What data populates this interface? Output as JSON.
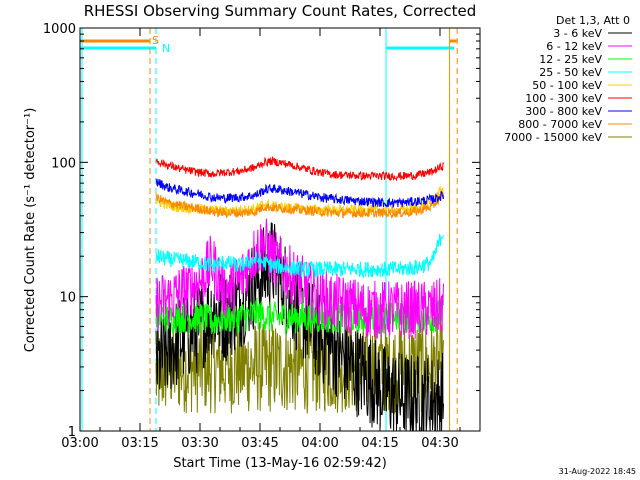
{
  "chart_data": {
    "type": "line",
    "title": "RHESSI Observing Summary Count Rates, Corrected",
    "xlabel": "Start Time (13-May-16 02:59:42)",
    "ylabel": "Corrected Count Rate (s⁻¹ detector⁻¹)",
    "y_scale": "log",
    "ylim": [
      1,
      1000
    ],
    "xlim_minutes": [
      0,
      100
    ],
    "x_ticks": [
      {
        "minute": 0,
        "label": "03:00"
      },
      {
        "minute": 15,
        "label": "03:15"
      },
      {
        "minute": 30,
        "label": "03:30"
      },
      {
        "minute": 45,
        "label": "03:45"
      },
      {
        "minute": 60,
        "label": "04:00"
      },
      {
        "minute": 75,
        "label": "04:15"
      },
      {
        "minute": 90,
        "label": "04:30"
      }
    ],
    "y_ticks": [
      {
        "value": 1,
        "label": "1"
      },
      {
        "value": 10,
        "label": "10"
      },
      {
        "value": 100,
        "label": "100"
      },
      {
        "value": 1000,
        "label": "1000"
      }
    ],
    "legend_header": "Det 1,3, Att 0",
    "series": [
      {
        "name": "3 - 6 keV",
        "color": "#000000",
        "points": [
          [
            19,
            3
          ],
          [
            22,
            4
          ],
          [
            26,
            5
          ],
          [
            30,
            6
          ],
          [
            33,
            8
          ],
          [
            36,
            7
          ],
          [
            40,
            9
          ],
          [
            44,
            13
          ],
          [
            48,
            18
          ],
          [
            52,
            11
          ],
          [
            56,
            7
          ],
          [
            60,
            5
          ],
          [
            64,
            4
          ],
          [
            68,
            3
          ],
          [
            72,
            2.5
          ],
          [
            76,
            2
          ],
          [
            80,
            1.8
          ],
          [
            84,
            1.7
          ],
          [
            88,
            1.7
          ],
          [
            91,
            1.8
          ]
        ]
      },
      {
        "name": "6 - 12 keV",
        "color": "#ff00ff",
        "points": [
          [
            19,
            9
          ],
          [
            22,
            9.5
          ],
          [
            26,
            11
          ],
          [
            30,
            13
          ],
          [
            33,
            18
          ],
          [
            36,
            11
          ],
          [
            40,
            13
          ],
          [
            44,
            22
          ],
          [
            46,
            25
          ],
          [
            48,
            20
          ],
          [
            52,
            15
          ],
          [
            56,
            12
          ],
          [
            60,
            10
          ],
          [
            64,
            9
          ],
          [
            68,
            8.5
          ],
          [
            72,
            8
          ],
          [
            76,
            8
          ],
          [
            80,
            8
          ],
          [
            84,
            8
          ],
          [
            88,
            8
          ],
          [
            91,
            8.5
          ]
        ]
      },
      {
        "name": "12 - 25 keV",
        "color": "#00ff00",
        "points": [
          [
            19,
            7.5
          ],
          [
            22,
            7
          ],
          [
            26,
            7
          ],
          [
            30,
            7
          ],
          [
            33,
            6.5
          ],
          [
            36,
            7
          ],
          [
            40,
            7
          ],
          [
            44,
            7.5
          ],
          [
            48,
            7
          ],
          [
            52,
            7
          ],
          [
            56,
            7
          ],
          [
            60,
            7
          ],
          [
            64,
            7
          ],
          [
            68,
            7
          ],
          [
            72,
            7
          ],
          [
            76,
            7
          ],
          [
            80,
            7
          ],
          [
            84,
            7
          ],
          [
            88,
            7
          ],
          [
            91,
            7.5
          ]
        ]
      },
      {
        "name": "25 - 50 keV",
        "color": "#00ffff",
        "points": [
          [
            19,
            20
          ],
          [
            22,
            19
          ],
          [
            26,
            18.5
          ],
          [
            30,
            18
          ],
          [
            33,
            17
          ],
          [
            36,
            18
          ],
          [
            40,
            17
          ],
          [
            44,
            19
          ],
          [
            48,
            17
          ],
          [
            52,
            16.5
          ],
          [
            56,
            16
          ],
          [
            60,
            16
          ],
          [
            64,
            16
          ],
          [
            68,
            16
          ],
          [
            72,
            16
          ],
          [
            76,
            16
          ],
          [
            80,
            16
          ],
          [
            84,
            16.5
          ],
          [
            88,
            18
          ],
          [
            91,
            32
          ]
        ]
      },
      {
        "name": "50 - 100 keV",
        "color": "#ffcc00",
        "points": [
          [
            19,
            52
          ],
          [
            22,
            48
          ],
          [
            26,
            46
          ],
          [
            30,
            45
          ],
          [
            33,
            44
          ],
          [
            36,
            43
          ],
          [
            40,
            44
          ],
          [
            44,
            45
          ],
          [
            46,
            49
          ],
          [
            48,
            47
          ],
          [
            52,
            46
          ],
          [
            56,
            45
          ],
          [
            60,
            44
          ],
          [
            64,
            44
          ],
          [
            68,
            44
          ],
          [
            72,
            44
          ],
          [
            76,
            44
          ],
          [
            80,
            44
          ],
          [
            84,
            45
          ],
          [
            88,
            50
          ],
          [
            91,
            66
          ]
        ]
      },
      {
        "name": "100 - 300 keV",
        "color": "#ff0000",
        "points": [
          [
            19,
            103
          ],
          [
            22,
            95
          ],
          [
            26,
            88
          ],
          [
            30,
            84
          ],
          [
            33,
            82
          ],
          [
            36,
            84
          ],
          [
            40,
            86
          ],
          [
            44,
            92
          ],
          [
            46,
            100
          ],
          [
            48,
            102
          ],
          [
            52,
            97
          ],
          [
            56,
            90
          ],
          [
            60,
            84
          ],
          [
            64,
            81
          ],
          [
            68,
            80
          ],
          [
            72,
            79
          ],
          [
            76,
            79
          ],
          [
            80,
            79
          ],
          [
            84,
            80
          ],
          [
            88,
            85
          ],
          [
            91,
            95
          ]
        ]
      },
      {
        "name": "300 - 800 keV",
        "color": "#0000ff",
        "points": [
          [
            19,
            72
          ],
          [
            22,
            65
          ],
          [
            26,
            61
          ],
          [
            30,
            58
          ],
          [
            33,
            55
          ],
          [
            36,
            54
          ],
          [
            40,
            55
          ],
          [
            44,
            57
          ],
          [
            46,
            62
          ],
          [
            48,
            64
          ],
          [
            52,
            61
          ],
          [
            56,
            58
          ],
          [
            60,
            55
          ],
          [
            64,
            53
          ],
          [
            68,
            52
          ],
          [
            72,
            51
          ],
          [
            76,
            50
          ],
          [
            80,
            50
          ],
          [
            84,
            51
          ],
          [
            88,
            53
          ],
          [
            91,
            57
          ]
        ]
      },
      {
        "name": "800 - 7000 keV",
        "color": "#ff8800",
        "points": [
          [
            19,
            55
          ],
          [
            22,
            50
          ],
          [
            26,
            47
          ],
          [
            30,
            45
          ],
          [
            33,
            43
          ],
          [
            36,
            42
          ],
          [
            40,
            42
          ],
          [
            44,
            43
          ],
          [
            46,
            47
          ],
          [
            48,
            46
          ],
          [
            52,
            45
          ],
          [
            56,
            44
          ],
          [
            60,
            43
          ],
          [
            64,
            42
          ],
          [
            68,
            42
          ],
          [
            72,
            42
          ],
          [
            76,
            42
          ],
          [
            80,
            42
          ],
          [
            84,
            43
          ],
          [
            88,
            47
          ],
          [
            91,
            58
          ]
        ]
      },
      {
        "name": "7000 - 15000 keV",
        "color": "#808000",
        "points": [
          [
            19,
            2.5
          ],
          [
            22,
            3
          ],
          [
            26,
            3
          ],
          [
            30,
            3
          ],
          [
            33,
            3
          ],
          [
            36,
            3
          ],
          [
            40,
            3
          ],
          [
            44,
            3
          ],
          [
            48,
            3
          ],
          [
            52,
            3
          ],
          [
            56,
            3
          ],
          [
            60,
            3
          ],
          [
            64,
            3
          ],
          [
            68,
            3
          ],
          [
            72,
            3
          ],
          [
            76,
            3
          ],
          [
            80,
            3
          ],
          [
            84,
            3
          ],
          [
            88,
            3
          ],
          [
            91,
            3
          ]
        ]
      }
    ],
    "flag_markers": [
      {
        "label": "S",
        "minute": 17.5,
        "color": "#ff8800"
      },
      {
        "label": "N",
        "minute": 19,
        "color": "#00ffff"
      }
    ],
    "timestamp": "31-Aug-2022 18:45"
  }
}
